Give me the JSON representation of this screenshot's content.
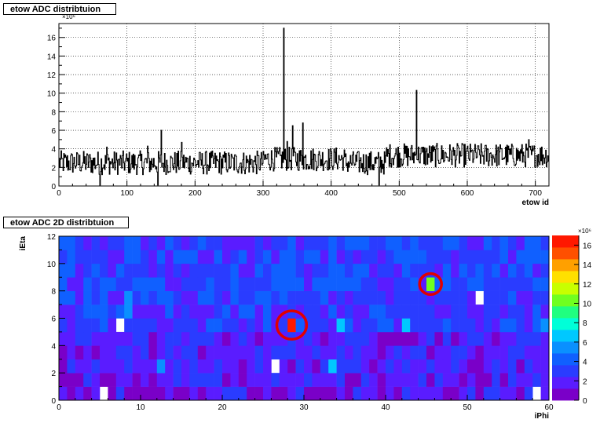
{
  "chart_data": [
    {
      "type": "line",
      "title": "etow ADC distribtuion",
      "xlabel": "etow id",
      "ylabel": "",
      "xlim": [
        0,
        720
      ],
      "ylim": [
        0,
        17.5
      ],
      "y_multiplier_label": "×10⁶",
      "grid": true,
      "x_ticks": [
        "0",
        "100",
        "200",
        "300",
        "400",
        "500",
        "600",
        "700"
      ],
      "y_ticks": [
        "0",
        "2",
        "4",
        "6",
        "8",
        "10",
        "12",
        "14",
        "16"
      ],
      "baseline_level": 2.5,
      "noise_amplitude": 1.3,
      "spikes": [
        {
          "x": 330,
          "y": 17.0
        },
        {
          "x": 525,
          "y": 10.3
        },
        {
          "x": 150,
          "y": 6.0
        },
        {
          "x": 343,
          "y": 6.5
        },
        {
          "x": 358,
          "y": 6.8
        },
        {
          "x": 70,
          "y": 4.2
        },
        {
          "x": 130,
          "y": 4.3
        },
        {
          "x": 180,
          "y": 4.7
        },
        {
          "x": 690,
          "y": 5.0
        },
        {
          "x": 335,
          "y": 4.8
        }
      ]
    },
    {
      "type": "heatmap",
      "title": "etow ADC 2D distribtuion",
      "xlabel": "iPhi",
      "ylabel": "iEta",
      "xlim": [
        0,
        60
      ],
      "ylim": [
        0,
        12
      ],
      "x_ticks": [
        "0",
        "10",
        "20",
        "30",
        "40",
        "50",
        "60"
      ],
      "y_ticks": [
        "0",
        "2",
        "4",
        "6",
        "8",
        "10",
        "12"
      ],
      "z_multiplier_label": "×10⁶",
      "z_ticks": [
        "0",
        "2",
        "4",
        "6",
        "8",
        "10",
        "12",
        "14",
        "16"
      ],
      "zlim": [
        0,
        17
      ],
      "highlights": [
        {
          "iPhi": 28.5,
          "iEta": 5.5,
          "value": 17.0
        },
        {
          "iPhi": 45.5,
          "iEta": 8.5,
          "value": 10.3
        }
      ],
      "empty_cells": [
        {
          "iPhi": 7.5,
          "iEta": 5.5
        },
        {
          "iPhi": 5.5,
          "iEta": 0.5
        },
        {
          "iPhi": 26.5,
          "iEta": 2.5
        },
        {
          "iPhi": 51.5,
          "iEta": 7.5
        },
        {
          "iPhi": 58.5,
          "iEta": 0.5
        }
      ],
      "hot_cells": [
        {
          "iPhi": 8.5,
          "iEta": 7.5,
          "value": 6.0
        },
        {
          "iPhi": 34.5,
          "iEta": 5.5,
          "value": 6.5
        },
        {
          "iPhi": 33.5,
          "iEta": 2.5,
          "value": 6.8
        },
        {
          "iPhi": 42.5,
          "iEta": 5.5,
          "value": 6.2
        },
        {
          "iPhi": 59.5,
          "iEta": 5.5,
          "value": 6.0
        },
        {
          "iPhi": 12.5,
          "iEta": 2.5,
          "value": 5.6
        },
        {
          "iPhi": 8.5,
          "iEta": 6.5,
          "value": 5.4
        }
      ],
      "colors": {
        "palette": [
          "#7a00c8",
          "#5a1cff",
          "#2a3cff",
          "#1060ff",
          "#0a90ff",
          "#00c8ff",
          "#00ffd8",
          "#20ff80",
          "#70ff20",
          "#c8ff00",
          "#ffe000",
          "#ffa000",
          "#ff5000",
          "#ff1800"
        ],
        "highlight_circle": "#e00000"
      }
    }
  ]
}
